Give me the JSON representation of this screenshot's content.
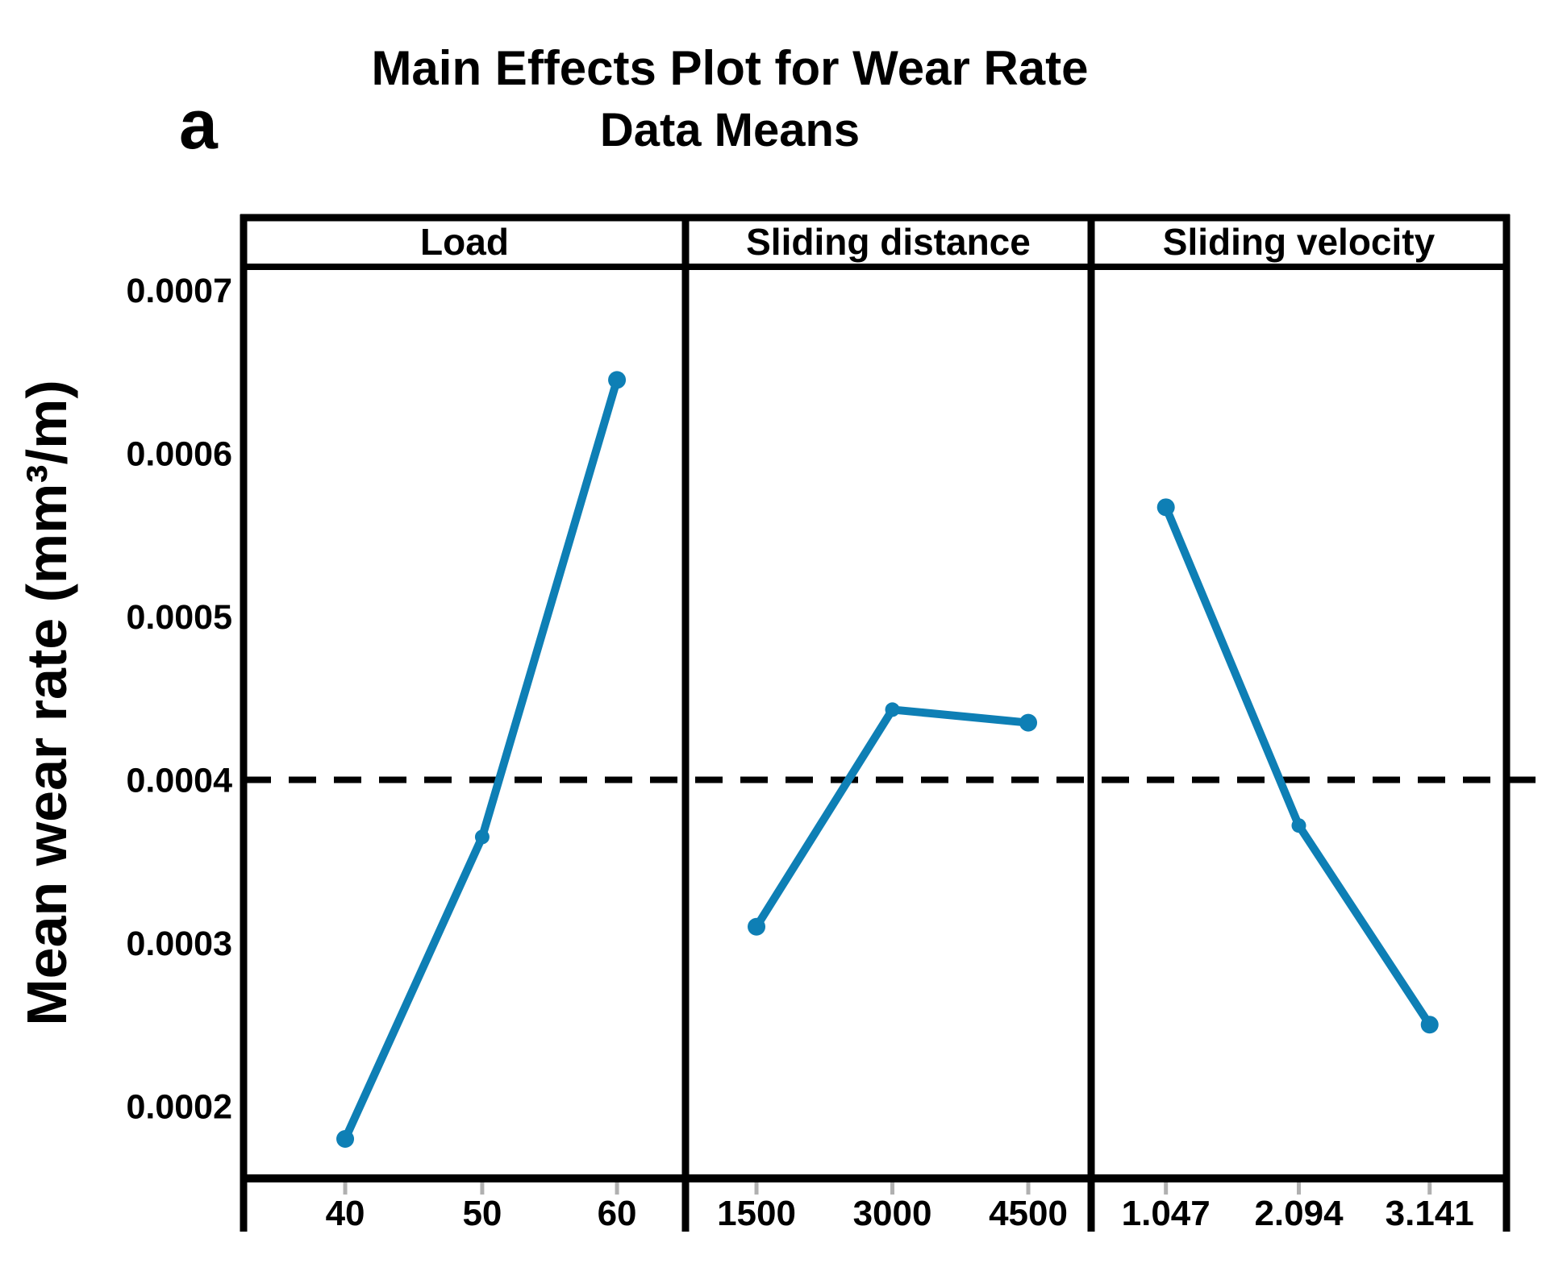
{
  "figure": {
    "label": "a"
  },
  "chart_data": {
    "type": "line",
    "title": "Main Effects Plot for Wear Rate",
    "subtitle": "Data Means",
    "ylabel": "Mean wear rate (mm³/m)",
    "ylim": [
      0.00015,
      0.000715
    ],
    "yticks": [
      0.0007,
      0.0006,
      0.0005,
      0.0004,
      0.0003,
      0.0002
    ],
    "ytick_labels": [
      "0.0007",
      "0.0006",
      "0.0005",
      "0.0004",
      "0.0003",
      "0.0002"
    ],
    "grand_mean": 0.0004,
    "grid": false,
    "legend_position": "none",
    "line_color": "#0e7fb5",
    "frame_color": "#000000",
    "panels": [
      {
        "label": "Load",
        "categories": [
          "40",
          "50",
          "60"
        ],
        "values": [
          0.00018,
          0.000365,
          0.000645
        ]
      },
      {
        "label": "Sliding distance",
        "categories": [
          "1500",
          "3000",
          "4500"
        ],
        "values": [
          0.00031,
          0.000443,
          0.000435
        ]
      },
      {
        "label": "Sliding velocity",
        "categories": [
          "1.047",
          "2.094",
          "3.141"
        ],
        "values": [
          0.000567,
          0.000372,
          0.00025
        ]
      }
    ]
  }
}
